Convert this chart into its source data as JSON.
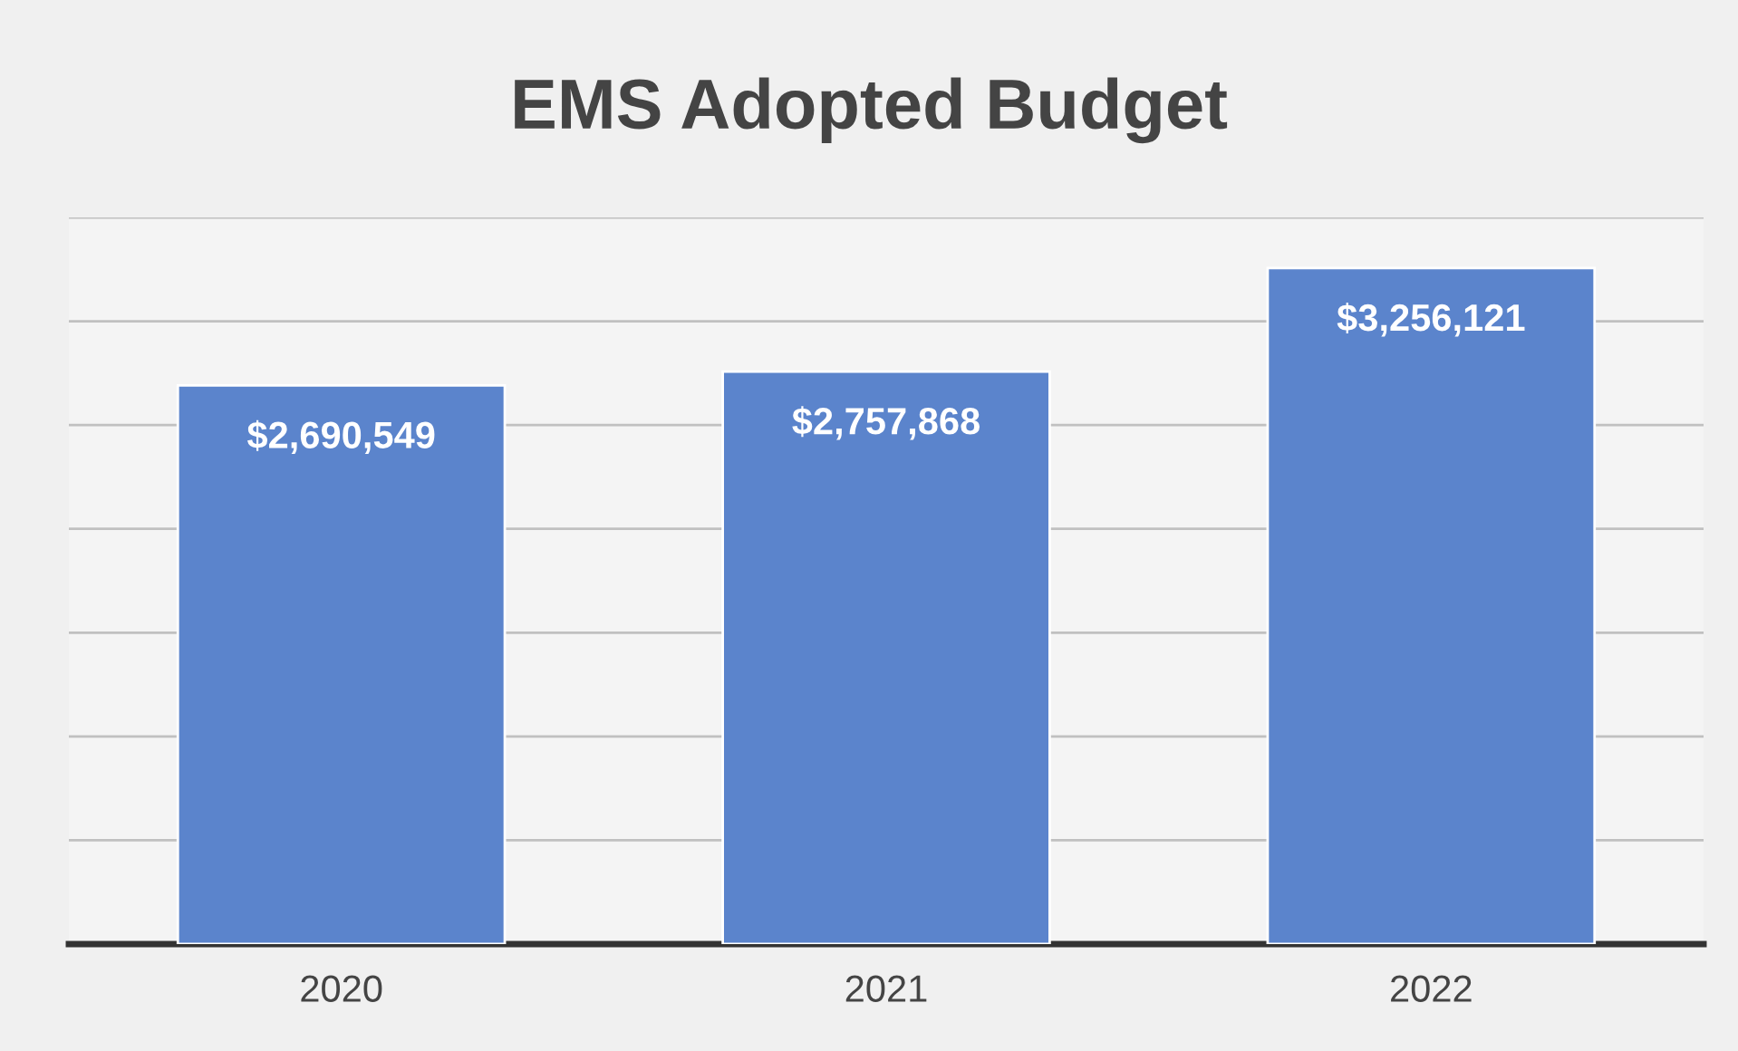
{
  "chart_data": {
    "type": "bar",
    "title": "EMS Adopted Budget",
    "categories": [
      "2020",
      "2021",
      "2022"
    ],
    "values": [
      2690549,
      2757868,
      3256121
    ],
    "value_labels": [
      "$2,690,549",
      "$2,757,868",
      "$3,256,121"
    ],
    "color": "#5b84cc",
    "ylim": [
      0,
      3500000
    ],
    "yticks": [
      {
        "value": 0,
        "label": null
      },
      {
        "value": 500000,
        "label": null
      },
      {
        "value": 1000000,
        "label": null
      },
      {
        "value": 1500000,
        "label": null
      },
      {
        "value": 2000000,
        "label": null
      },
      {
        "value": 2500000,
        "label": null
      },
      {
        "value": 3000000,
        "label": null
      },
      {
        "value": 3500000,
        "label": null
      }
    ],
    "tick_labels": "x",
    "grid": "y"
  }
}
